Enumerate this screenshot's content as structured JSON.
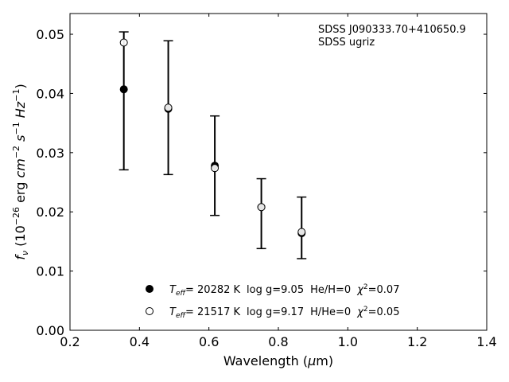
{
  "chart_data": {
    "type": "scatter",
    "title": "",
    "xlabel": "Wavelength (μm)",
    "ylabel": "f_ν (10^-26 erg cm^-2 s^-1 Hz^-1)",
    "xlim": [
      0.2,
      1.4
    ],
    "ylim": [
      0.0,
      0.0535
    ],
    "xticks": [
      0.2,
      0.4,
      0.6,
      0.8,
      1.0,
      1.2,
      1.4
    ],
    "xtick_labels": [
      "0.2",
      "0.4",
      "0.6",
      "0.8",
      "1.0",
      "1.2",
      "1.4"
    ],
    "yticks": [
      0.0,
      0.01,
      0.02,
      0.03,
      0.04,
      0.05
    ],
    "ytick_labels": [
      "0.00",
      "0.01",
      "0.02",
      "0.03",
      "0.04",
      "0.05"
    ],
    "grid": false,
    "annotation": [
      "SDSS J090333.70+410650.9",
      "SDSS ugriz"
    ],
    "observed": {
      "x": [
        0.355,
        0.483,
        0.617,
        0.751,
        0.867
      ],
      "y": [
        0.0407,
        0.0374,
        0.0278,
        0.0208,
        0.0164
      ],
      "yerr_low": [
        0.0271,
        0.0263,
        0.0194,
        0.0138,
        0.0121
      ],
      "yerr_high": [
        0.0504,
        0.0489,
        0.0362,
        0.0256,
        0.0225
      ]
    },
    "series": [
      {
        "name": "T_eff= 20282 K  log g=9.05  He/H=0  χ²=0.07",
        "marker": "filled-circle",
        "x": [
          0.355,
          0.483,
          0.617,
          0.751,
          0.867
        ],
        "y": [
          0.0407,
          0.0374,
          0.0278,
          0.0208,
          0.0164
        ]
      },
      {
        "name": "T_eff= 21517 K  log g=9.17  H/He=0  χ²=0.05",
        "marker": "open-circle",
        "x": [
          0.355,
          0.483,
          0.617,
          0.751,
          0.867
        ],
        "y": [
          0.0486,
          0.0376,
          0.0274,
          0.0208,
          0.0166
        ]
      }
    ],
    "legend": [
      {
        "teff_val": "= 20282 K",
        "logg": "log g=9.05",
        "comp": "He/H=0",
        "chi": "=0.07"
      },
      {
        "teff_val": "= 21517 K",
        "logg": "log g=9.17",
        "comp": "H/He=0",
        "chi": "=0.05"
      }
    ],
    "legend_position": "bottom-center"
  }
}
